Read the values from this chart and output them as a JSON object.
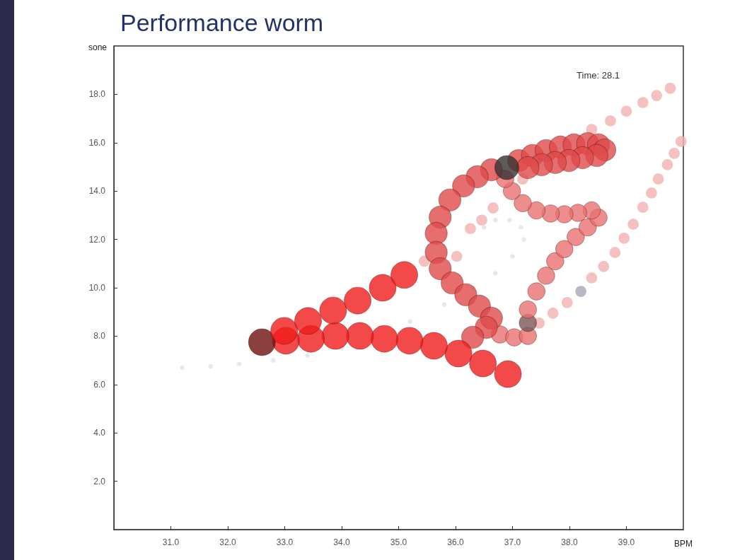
{
  "chart_data": {
    "type": "bubble",
    "title": "Performance worm",
    "xlabel": "BPM",
    "ylabel": "sone",
    "annotations": [
      "Time: 28.1"
    ],
    "xlim": [
      30,
      40
    ],
    "ylim": [
      0,
      20
    ],
    "xticks": [
      {
        "value": 31,
        "label": "31.0"
      },
      {
        "value": 32,
        "label": "32.0"
      },
      {
        "value": 33,
        "label": "33.0"
      },
      {
        "value": 34,
        "label": "34.0"
      },
      {
        "value": 35,
        "label": "35.0"
      },
      {
        "value": 36,
        "label": "36.0"
      },
      {
        "value": 37,
        "label": "37.0"
      },
      {
        "value": 38,
        "label": "38.0"
      },
      {
        "value": 39,
        "label": "39.0"
      }
    ],
    "yticks": [
      {
        "value": 2,
        "label": "2.0"
      },
      {
        "value": 4,
        "label": "4.0"
      },
      {
        "value": 6,
        "label": "6.0"
      },
      {
        "value": 8,
        "label": "8.0"
      },
      {
        "value": 10,
        "label": "10.0"
      },
      {
        "value": 12,
        "label": "12.0"
      },
      {
        "value": 14,
        "label": "14.0"
      },
      {
        "value": 16,
        "label": "16.0"
      },
      {
        "value": 18,
        "label": "18.0"
      }
    ],
    "grid": false,
    "marker": "circle",
    "x": [
      31.2,
      31.7,
      32.2,
      32.8,
      33.4,
      34.0,
      35.2,
      35.8,
      36.3,
      36.7,
      37.0,
      37.2,
      37.15,
      36.95,
      36.7,
      36.5,
      35.45,
      36.02,
      36.26,
      36.46,
      36.66,
      37.18,
      38.39,
      38.72,
      39.0,
      39.29,
      39.53,
      39.77,
      39.96,
      39.84,
      39.72,
      39.56,
      39.44,
      39.29,
      39.12,
      38.96,
      38.8,
      38.6,
      38.39,
      38.2,
      37.96,
      37.71,
      37.47,
      36.78,
      37.03,
      37.27,
      37.27,
      37.27,
      37.42,
      37.59,
      37.75,
      37.91,
      38.11,
      38.32,
      38.51,
      38.39,
      38.15,
      37.91,
      37.67,
      37.42,
      37.18,
      36.99,
      36.87,
      37.11,
      37.35,
      37.59,
      37.84,
      38.08,
      38.32,
      38.51,
      38.62,
      38.48,
      38.23,
      37.99,
      37.75,
      37.51,
      37.27,
      36.63,
      36.38,
      36.14,
      35.9,
      35.73,
      35.66,
      35.66,
      35.73,
      35.94,
      36.18,
      36.42,
      36.63,
      36.54,
      36.3,
      36.9,
      36.92,
      36.48,
      36.05,
      35.62,
      35.19,
      34.75,
      34.32,
      33.89,
      33.46,
      33.02,
      32.6,
      32.99,
      33.41,
      33.85,
      34.28,
      34.72,
      35.1
    ],
    "values": [
      6.7,
      6.75,
      6.85,
      7.0,
      7.2,
      7.5,
      8.6,
      9.3,
      10.0,
      10.6,
      11.3,
      12.0,
      12.5,
      12.8,
      12.8,
      12.5,
      11.1,
      11.3,
      12.45,
      12.8,
      13.3,
      14.5,
      16.55,
      16.9,
      17.3,
      17.66,
      17.95,
      18.25,
      16.05,
      15.56,
      15.09,
      14.5,
      13.92,
      13.33,
      12.63,
      12.05,
      11.46,
      10.88,
      10.41,
      9.85,
      9.39,
      8.95,
      8.54,
      8.07,
      7.95,
      8.01,
      8.55,
      9.1,
      9.85,
      10.5,
      11.1,
      11.6,
      12.1,
      12.5,
      12.9,
      13.2,
      13.1,
      13.04,
      13.07,
      13.2,
      13.5,
      14.0,
      14.5,
      15.26,
      15.47,
      15.67,
      15.82,
      15.91,
      15.96,
      15.91,
      15.7,
      15.47,
      15.38,
      15.26,
      15.18,
      15.09,
      14.97,
      14.88,
      14.59,
      14.21,
      13.63,
      12.92,
      12.25,
      11.46,
      10.79,
      10.2,
      9.71,
      9.24,
      8.74,
      8.36,
      7.95,
      14.97,
      6.43,
      6.87,
      7.28,
      7.6,
      7.81,
      7.89,
      8.01,
      8.01,
      7.89,
      7.81,
      7.75,
      8.22,
      8.63,
      9.06,
      9.47,
      10.0,
      10.53
    ],
    "sizes": [
      0.03,
      0.03,
      0.03,
      0.03,
      0.03,
      0.03,
      0.03,
      0.03,
      0.03,
      0.03,
      0.03,
      0.03,
      0.03,
      0.03,
      0.03,
      0.03,
      0.17,
      0.17,
      0.17,
      0.17,
      0.17,
      0.17,
      0.17,
      0.17,
      0.17,
      0.17,
      0.17,
      0.17,
      0.17,
      0.17,
      0.17,
      0.17,
      0.17,
      0.17,
      0.17,
      0.17,
      0.17,
      0.17,
      0.17,
      0.17,
      0.17,
      0.17,
      0.17,
      0.42,
      0.42,
      0.42,
      0.42,
      0.42,
      0.42,
      0.42,
      0.42,
      0.42,
      0.42,
      0.42,
      0.42,
      0.42,
      0.42,
      0.42,
      0.42,
      0.42,
      0.42,
      0.42,
      0.42,
      0.68,
      0.68,
      0.68,
      0.68,
      0.68,
      0.68,
      0.68,
      0.68,
      0.68,
      0.68,
      0.68,
      0.68,
      0.68,
      0.68,
      0.68,
      0.68,
      0.68,
      0.68,
      0.68,
      0.68,
      0.68,
      0.68,
      0.68,
      0.68,
      0.68,
      0.68,
      0.68,
      0.68,
      0.8,
      1,
      1,
      1,
      1,
      1,
      1,
      1,
      1,
      1,
      1,
      1,
      1,
      1,
      1,
      1,
      1,
      1
    ],
    "colors": [
      "#e2e2e2",
      "#e2e2e2",
      "#e2e2e2",
      "#e2e2e2",
      "#e2e2e2",
      "#e2e2e2",
      "#e2e2e2",
      "#e2e2e2",
      "#e2e2e2",
      "#e2e2e2",
      "#e2e2e2",
      "#e2e2e2",
      "#e2e2e2",
      "#e2e2e2",
      "#e2e2e2",
      "#e2e2e2",
      "#f2b0b0",
      "#f2b0b0",
      "#f2b0b0",
      "#f2b0b0",
      "#f2b0b0",
      "#f2b0b0",
      "#f2b0b0",
      "#f2b0b0",
      "#f2b0b0",
      "#f2b0b0",
      "#f2b0b0",
      "#f2b0b0",
      "#f2b0b0",
      "#f2b0b0",
      "#f2b0b0",
      "#f2b0b0",
      "#f2b0b0",
      "#f2b0b0",
      "#f2b0b0",
      "#f2b0b0",
      "#f2b0b0",
      "#f2b0b0",
      "#f2b0b0",
      "#a8a8b8",
      "#f2b0b0",
      "#f2b0b0",
      "#f2b0b0",
      "#e87070",
      "#e87070",
      "#e87070",
      "#7a5858",
      "#e87070",
      "#e87070",
      "#e87070",
      "#e87070",
      "#e87070",
      "#e87070",
      "#e87070",
      "#e87070",
      "#e87070",
      "#e87070",
      "#e87070",
      "#e87070",
      "#e87070",
      "#e87070",
      "#e87070",
      "#e87070",
      "#e04a4a",
      "#e04a4a",
      "#e04a4a",
      "#e04a4a",
      "#e04a4a",
      "#e04a4a",
      "#e04a4a",
      "#e04a4a",
      "#e04a4a",
      "#e04a4a",
      "#e04a4a",
      "#e04a4a",
      "#e04a4a",
      "#e04a4a",
      "#e04a4a",
      "#e04a4a",
      "#e04a4a",
      "#e04a4a",
      "#e04a4a",
      "#e04a4a",
      "#e04a4a",
      "#e04a4a",
      "#e04a4a",
      "#e04a4a",
      "#e04a4a",
      "#e04a4a",
      "#e04a4a",
      "#e04a4a",
      "#333333",
      "#f01c1c",
      "#f01c1c",
      "#f01c1c",
      "#f01c1c",
      "#f01c1c",
      "#f01c1c",
      "#f01c1c",
      "#f01c1c",
      "#f01c1c",
      "#f01c1c",
      "#6e1010",
      "#f01c1c",
      "#f01c1c",
      "#f01c1c",
      "#f01c1c",
      "#f01c1c",
      "#f01c1c"
    ]
  }
}
